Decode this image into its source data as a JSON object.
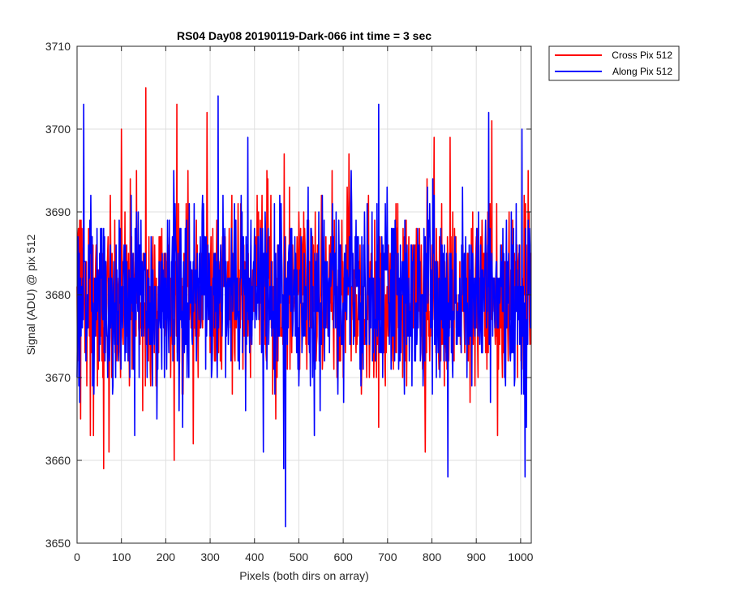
{
  "chart_data": {
    "type": "line",
    "title": "RS04 Day08 20190119-Dark-066 int time = 3 sec",
    "xlabel": "Pixels (both dirs on array)",
    "ylabel": "Signal (ADU) @ pix 512",
    "xlim": [
      0,
      1024
    ],
    "ylim": [
      3650,
      3710
    ],
    "xticks": [
      0,
      100,
      200,
      300,
      400,
      500,
      600,
      700,
      800,
      900,
      1000
    ],
    "yticks": [
      3650,
      3660,
      3670,
      3680,
      3690,
      3700,
      3710
    ],
    "grid": true,
    "legend_position": "outside-top-right",
    "series": [
      {
        "name": "Cross Pix 512",
        "color": "#ff0000",
        "mean": 3680,
        "std": 5.5,
        "n_points": 1024,
        "notable_points": [
          [
            6,
            3689
          ],
          [
            8,
            3665
          ],
          [
            30,
            3663
          ],
          [
            60,
            3659
          ],
          [
            72,
            3661
          ],
          [
            100,
            3700
          ],
          [
            155,
            3705
          ],
          [
            219,
            3660
          ],
          [
            225,
            3703
          ],
          [
            262,
            3662
          ],
          [
            293,
            3702
          ],
          [
            785,
            3661
          ],
          [
            805,
            3699
          ],
          [
            935,
            3701
          ],
          [
            948,
            3663
          ],
          [
            1017,
            3695
          ]
        ]
      },
      {
        "name": "Along Pix 512",
        "color": "#0000ff",
        "mean": 3680,
        "std": 5.5,
        "n_points": 1024,
        "notable_points": [
          [
            15,
            3703
          ],
          [
            80,
            3668
          ],
          [
            130,
            3663
          ],
          [
            180,
            3665
          ],
          [
            230,
            3666
          ],
          [
            318,
            3704
          ],
          [
            420,
            3661
          ],
          [
            466,
            3659
          ],
          [
            470,
            3652
          ],
          [
            500,
            3669
          ],
          [
            535,
            3663
          ],
          [
            680,
            3703
          ],
          [
            836,
            3658
          ],
          [
            928,
            3702
          ],
          [
            1003,
            3700
          ],
          [
            1010,
            3658
          ],
          [
            1013,
            3664
          ]
        ]
      }
    ]
  }
}
